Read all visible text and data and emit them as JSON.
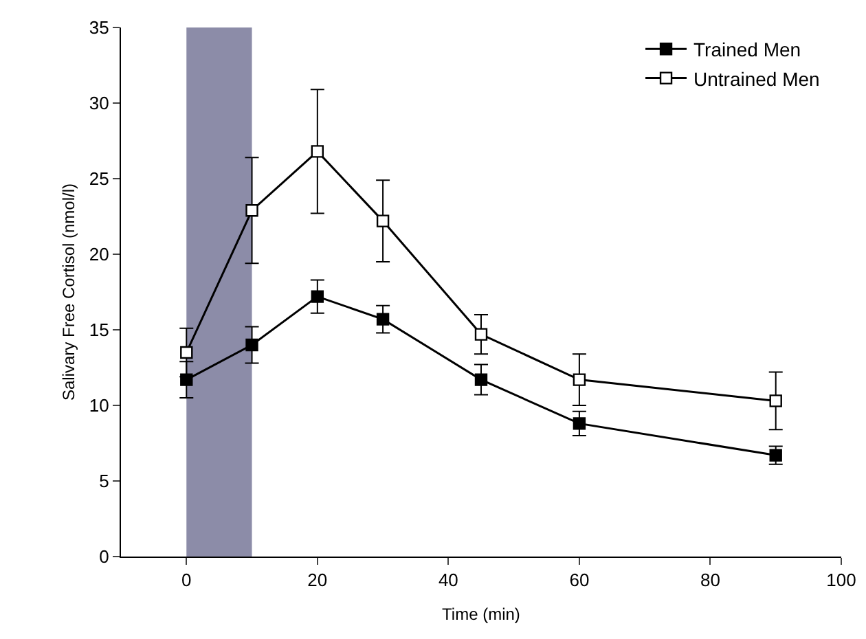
{
  "chart_data": {
    "type": "line",
    "xlabel": "Time (min)",
    "ylabel": "Salivary Free Cortisol (nmol/l)",
    "x": [
      0,
      10,
      20,
      30,
      45,
      60,
      90
    ],
    "series": [
      {
        "name": "Trained Men",
        "color": "#000000",
        "marker": "square",
        "values": [
          11.7,
          14.0,
          17.2,
          15.7,
          11.7,
          8.8,
          6.7
        ],
        "errors": [
          1.2,
          1.2,
          1.1,
          0.9,
          1.0,
          0.8,
          0.6
        ]
      },
      {
        "name": "Untrained Men",
        "color": "#000000",
        "marker": "square-open",
        "values": [
          13.5,
          22.9,
          26.8,
          22.2,
          14.7,
          11.7,
          10.3
        ],
        "errors": [
          1.6,
          3.5,
          4.1,
          2.7,
          1.3,
          1.7,
          1.9
        ]
      }
    ],
    "xlim": [
      -10,
      100
    ],
    "xticks": [
      0,
      20,
      40,
      60,
      80,
      100
    ],
    "ylim": [
      0,
      35
    ],
    "yticks": [
      0,
      5,
      10,
      15,
      20,
      25,
      30,
      35
    ],
    "bands": [
      {
        "axis": "x",
        "from": 0,
        "to": 10,
        "color": "#8c8ca8"
      }
    ],
    "grid": false,
    "legend": "top right",
    "line_style": "solid"
  }
}
